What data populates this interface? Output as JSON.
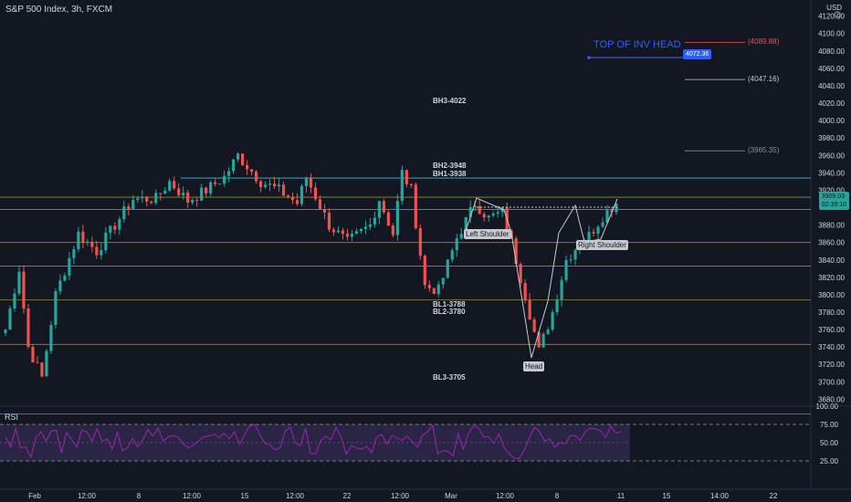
{
  "header": {
    "title": "S&P 500 Index, 3h, FXCM",
    "currency": "USD"
  },
  "rsi": {
    "title": "RSI",
    "ticks": [
      "100.00",
      "75.00",
      "50.00",
      "25.00"
    ],
    "overbought": 75,
    "oversold": 25
  },
  "colors": {
    "up": "#26a69a",
    "down": "#ef5350",
    "rsi_line": "#9c27b0",
    "blue": "#2962ff",
    "level": "#8f8f2b",
    "neck": "#4fb3e0"
  },
  "annotations": [
    {
      "label": "BH3-4022",
      "price": 4022
    },
    {
      "label": "BH2-3948",
      "price": 3948
    },
    {
      "label": "BH1-3938",
      "price": 3938
    },
    {
      "label": "BL1-3788",
      "price": 3788
    },
    {
      "label": "BL2-3780",
      "price": 3780
    },
    {
      "label": "BL3-3705",
      "price": 3705
    }
  ],
  "pattern_labels": {
    "left": "Left Shoulder",
    "head": "Head",
    "right": "Right Shoulder",
    "top": "TOP OF INV HEAD"
  },
  "price_tags": {
    "blue": "4072.36",
    "last_price": "3909.03",
    "countdown": "02:39:10"
  },
  "reference_prices": [
    {
      "label": "(4089.88)",
      "price": 4089.88,
      "color": "#ef5350"
    },
    {
      "label": "(4047.16)",
      "price": 4047.16,
      "color": "#c7c9cf"
    },
    {
      "label": "(3965.35)",
      "price": 3965.35,
      "color": "#8a8f9c"
    }
  ],
  "chart_data": {
    "type": "candlestick",
    "title": "S&P 500 Index, 3h, FXCM",
    "y_ticks": [
      4120,
      4100,
      4080,
      4060,
      4040,
      4020,
      4000,
      3980,
      3960,
      3940,
      3920,
      3880,
      3860,
      3840,
      3820,
      3800,
      3780,
      3760,
      3740,
      3720,
      3700,
      3680
    ],
    "x_ticks": [
      "Feb",
      "12:00",
      "8",
      "12:00",
      "15",
      "12:00",
      "22",
      "12:00",
      "Mar",
      "12:00",
      "8",
      "11",
      "15",
      "14:00",
      "22"
    ],
    "ylim": [
      3670,
      4128
    ],
    "horizontal_levels": [
      3934,
      3912,
      3898,
      3860,
      3833,
      3794,
      3743,
      3663
    ],
    "anchors": [
      [
        0,
        3760
      ],
      [
        3,
        3830
      ],
      [
        5,
        3740
      ],
      [
        8,
        3705
      ],
      [
        11,
        3800
      ],
      [
        16,
        3870
      ],
      [
        20,
        3850
      ],
      [
        24,
        3880
      ],
      [
        28,
        3910
      ],
      [
        33,
        3910
      ],
      [
        36,
        3930
      ],
      [
        40,
        3908
      ],
      [
        44,
        3920
      ],
      [
        48,
        3935
      ],
      [
        51,
        3960
      ],
      [
        56,
        3930
      ],
      [
        60,
        3920
      ],
      [
        64,
        3905
      ],
      [
        66,
        3935
      ],
      [
        71,
        3880
      ],
      [
        75,
        3860
      ],
      [
        80,
        3880
      ],
      [
        82,
        3910
      ],
      [
        85,
        3870
      ],
      [
        87,
        3940
      ],
      [
        89,
        3920
      ],
      [
        92,
        3810
      ],
      [
        95,
        3805
      ],
      [
        99,
        3865
      ],
      [
        103,
        3905
      ],
      [
        106,
        3888
      ],
      [
        109,
        3895
      ],
      [
        111,
        3860
      ],
      [
        114,
        3800
      ],
      [
        117,
        3735
      ],
      [
        120,
        3780
      ],
      [
        123,
        3840
      ],
      [
        126,
        3860
      ],
      [
        128,
        3868
      ],
      [
        131,
        3890
      ],
      [
        134,
        3906
      ]
    ],
    "rsi_values": [
      58,
      44,
      69,
      43,
      44,
      30,
      57,
      65,
      52,
      66,
      67,
      36,
      64,
      54,
      44,
      67,
      65,
      52,
      69,
      52,
      55,
      41,
      64,
      39,
      43,
      56,
      44,
      54,
      68,
      59,
      70,
      52,
      58,
      60,
      57,
      48,
      43,
      47,
      53,
      58,
      59,
      62,
      57,
      63,
      55,
      65,
      48,
      60,
      73,
      75,
      61,
      49,
      47,
      40,
      43,
      66,
      71,
      49,
      46,
      70,
      35,
      35,
      53,
      59,
      54,
      71,
      57,
      34,
      46,
      43,
      41,
      45,
      36,
      58,
      61,
      48,
      60,
      56,
      53,
      59,
      51,
      44,
      60,
      65,
      74,
      35,
      39,
      38,
      32,
      62,
      41,
      62,
      73,
      70,
      58,
      58,
      49,
      62,
      44,
      35,
      29,
      28,
      40,
      56,
      71,
      65,
      52,
      55,
      44,
      50,
      48,
      59,
      60,
      53,
      65,
      70,
      69,
      66,
      57,
      73,
      63,
      65
    ]
  }
}
